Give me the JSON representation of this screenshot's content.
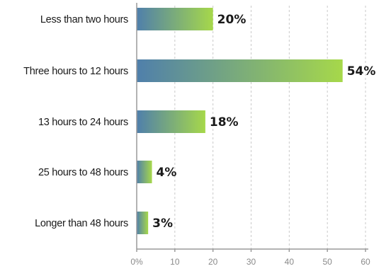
{
  "chart_data": {
    "type": "bar",
    "orientation": "horizontal",
    "categories": [
      "Less than two hours",
      "Three hours to 12 hours",
      "13 hours to 24 hours",
      "25 hours to 48 hours",
      "Longer than 48 hours"
    ],
    "values": [
      20,
      54,
      18,
      4,
      3
    ],
    "value_labels": [
      "20%",
      "54%",
      "18%",
      "4%",
      "3%"
    ],
    "xlim": [
      0,
      60
    ],
    "xticks": [
      0,
      10,
      20,
      30,
      40,
      50,
      60
    ],
    "xtick_labels": [
      "0%",
      "10",
      "20",
      "30",
      "40",
      "50",
      "60"
    ],
    "title": "",
    "xlabel": "",
    "ylabel": "",
    "grid": true,
    "legend": "none",
    "colors": {
      "bar_start": "#4f7fab",
      "bar_end": "#a6d84a"
    }
  }
}
